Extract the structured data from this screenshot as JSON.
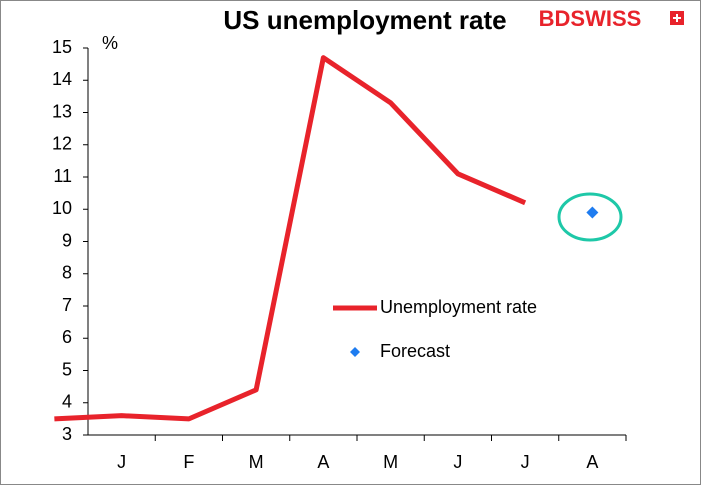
{
  "logo": "BDSWISS",
  "chart_data": {
    "type": "line",
    "title": "US unemployment rate",
    "y_label": "%",
    "categories": [
      null,
      "J",
      "F",
      "M",
      "A",
      "M",
      "J",
      "J",
      "A"
    ],
    "series": [
      {
        "name": "Unemployment rate",
        "color": "#e8232b",
        "values": [
          3.5,
          3.6,
          3.5,
          4.4,
          14.7,
          13.3,
          11.1,
          10.2,
          null
        ]
      },
      {
        "name": "Forecast",
        "color": "#1e7cf0",
        "marker": "diamond",
        "values": [
          null,
          null,
          null,
          null,
          null,
          null,
          null,
          null,
          9.9
        ]
      }
    ],
    "ylim": [
      3,
      15
    ],
    "yticks": [
      3,
      4,
      5,
      6,
      7,
      8,
      9,
      10,
      11,
      12,
      13,
      14,
      15
    ],
    "grid": false,
    "legend": "center"
  }
}
